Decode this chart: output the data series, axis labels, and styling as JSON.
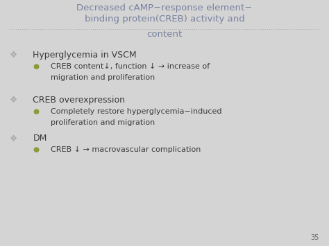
{
  "bg_color": "#d4d4d4",
  "title_line1": "Decreased cAMP−response element−",
  "title_line2": "binding protein(CREB) activity and",
  "title_line3": "content",
  "title_color": "#7a82a0",
  "title_fontsize": 9.5,
  "divider_color": "#aaaaaa",
  "main_bullet_color": "#aaaaaa",
  "sub_bullet_color": "#8b9a3a",
  "main_text_color": "#3a3a3a",
  "sub_text_color": "#3a3a3a",
  "main_fontsize": 9.0,
  "sub_fontsize": 8.0,
  "page_number": "35",
  "page_num_color": "#666666",
  "page_num_fontsize": 7
}
